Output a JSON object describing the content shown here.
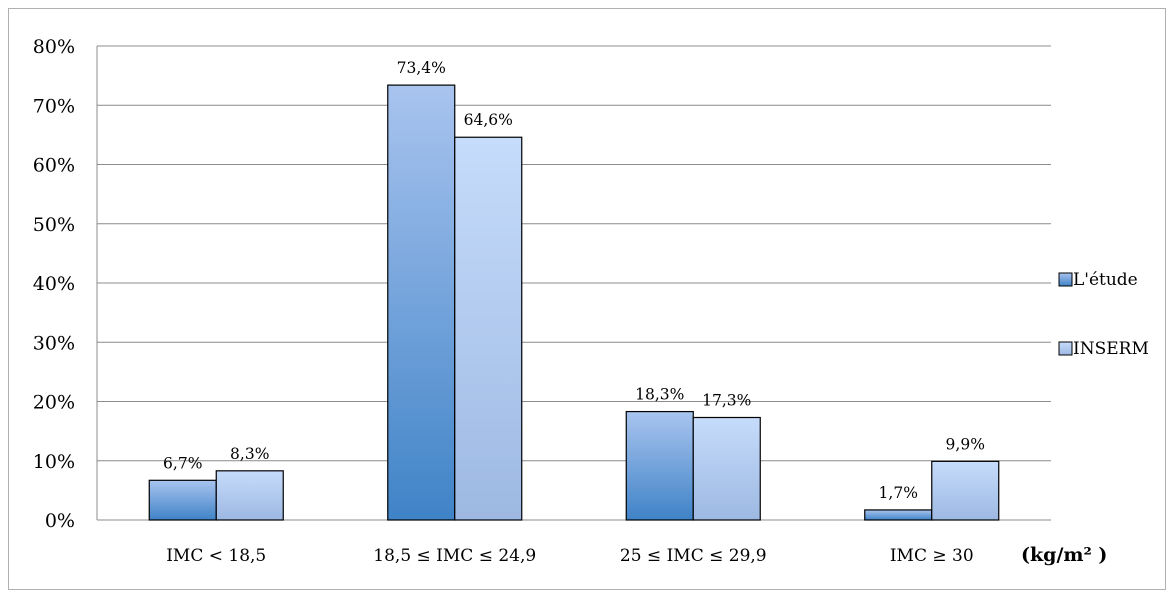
{
  "chart_data": {
    "type": "bar",
    "categories": [
      "IMC < 18,5",
      "18,5 ≤ IMC ≤ 24,9",
      "25 ≤ IMC ≤ 29,9",
      "IMC ≥ 30"
    ],
    "series": [
      {
        "name": "L'étude",
        "values": [
          6.7,
          73.4,
          18.3,
          1.7
        ],
        "labels": [
          "6,7%",
          "73,4%",
          "18,3%",
          "1,7%"
        ],
        "color_top": "#a9c4ef",
        "color_bottom": "#3f83c7"
      },
      {
        "name": "INSERM",
        "values": [
          8.3,
          64.6,
          17.3,
          9.9
        ],
        "labels": [
          "8,3%",
          "64,6%",
          "17,3%",
          "9,9%"
        ],
        "color_top": "#c6dcfb",
        "color_bottom": "#9db8e2"
      }
    ],
    "y_ticks": [
      "0%",
      "10%",
      "20%",
      "30%",
      "40%",
      "50%",
      "60%",
      "70%",
      "80%"
    ],
    "ylim": [
      0,
      80
    ],
    "title": "",
    "xlabel": "",
    "ylabel": "",
    "unit_label": "(kg/m² )",
    "legend_position": "right",
    "grid": true,
    "grid_color": "#8c8c8c"
  }
}
